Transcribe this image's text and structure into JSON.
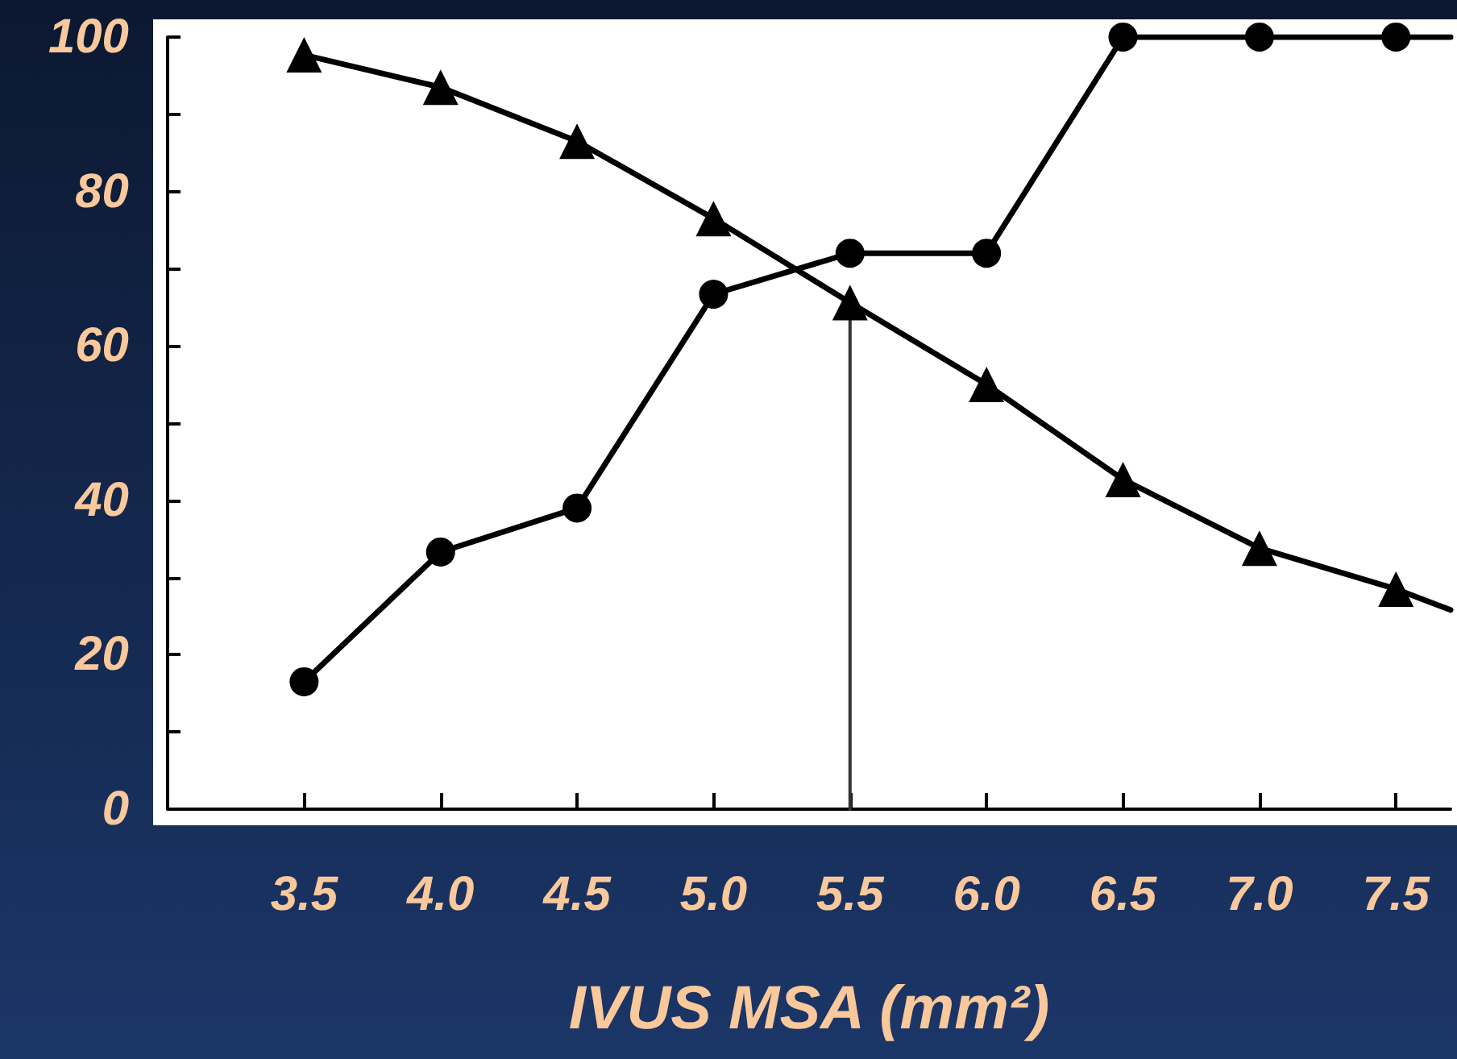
{
  "chart_data": {
    "type": "line",
    "xlabel": "IVUS MSA (mm²)",
    "xlim": [
      3.0,
      7.7
    ],
    "xticks": [
      {
        "value": 3.5,
        "label": "3.5"
      },
      {
        "value": 4,
        "label": "4.0"
      },
      {
        "value": 4.5,
        "label": "4.5"
      },
      {
        "value": 5,
        "label": "5.0"
      },
      {
        "value": 5.5,
        "label": "5.5"
      },
      {
        "value": 6,
        "label": "6.0"
      },
      {
        "value": 6.5,
        "label": "6.5"
      },
      {
        "value": 7,
        "label": "7.0"
      },
      {
        "value": 7.5,
        "label": "7.5"
      }
    ],
    "ylim": [
      0,
      100
    ],
    "yticks": [
      0,
      {
        "value": 10,
        "label": null
      },
      20,
      {
        "value": 30,
        "label": null
      },
      40,
      {
        "value": 50,
        "label": null
      },
      60,
      {
        "value": 70,
        "label": null
      },
      80,
      {
        "value": 90,
        "label": null
      },
      100
    ],
    "line_style": "solid",
    "series": [
      {
        "color": "#000000",
        "marker": "circle",
        "x": [
          3.5,
          4,
          4.5,
          5,
          5.5,
          6,
          6.5,
          7,
          7.5,
          7.7
        ],
        "values": [
          16.5,
          33.3,
          39,
          66.7,
          72,
          72,
          100,
          100,
          100,
          100
        ]
      },
      {
        "color": "#000000",
        "marker": "triangle",
        "x": [
          3.5,
          4,
          4.5,
          5,
          5.5,
          6,
          6.5,
          7,
          7.5,
          7.7
        ],
        "values": [
          97.7,
          93.5,
          86.5,
          76.5,
          65.6,
          55,
          42.7,
          33.8,
          28.5,
          25.8
        ]
      },
      {
        "color": "#333333",
        "marker": "none",
        "x": [
          5.5,
          5.5
        ],
        "values": [
          0,
          65.6
        ]
      }
    ]
  }
}
